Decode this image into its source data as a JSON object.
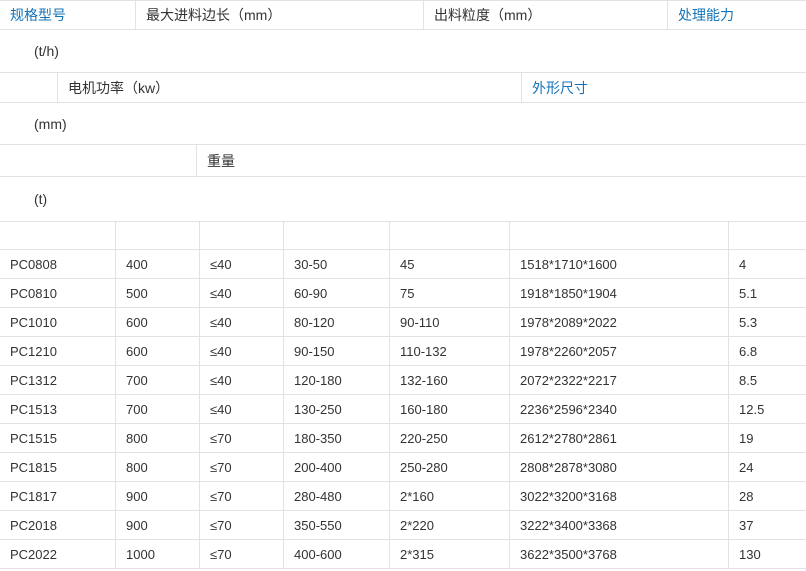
{
  "colors": {
    "link_blue": "#1473b9",
    "text": "#333333",
    "border": "#e2e2e2",
    "background": "#ffffff"
  },
  "header_rows": {
    "row1": {
      "spec_model": "规格型号",
      "max_feed_size": "最大进料边长（mm）",
      "output_granularity": "出料粒度（mm）",
      "capacity": "处理能力"
    },
    "capacity_unit": "(t/h)",
    "row2": {
      "motor_power": "电机功率（kw）",
      "dimensions": "外形尺寸"
    },
    "dimensions_unit": "(mm)",
    "row3": {
      "weight": "重量"
    },
    "weight_unit": "(t)"
  },
  "table": {
    "column_keys": [
      "model",
      "max_feed_edge_mm",
      "output_size_mm",
      "capacity_tph",
      "motor_power_kw",
      "dimensions_mm",
      "weight_t"
    ],
    "rows": [
      [
        "PC0808",
        "400",
        "≤40",
        "30-50",
        "45",
        "1518*1710*1600",
        "4"
      ],
      [
        "PC0810",
        "500",
        "≤40",
        "60-90",
        "75",
        "1918*1850*1904",
        "5.1"
      ],
      [
        "PC1010",
        "600",
        "≤40",
        "80-120",
        "90-110",
        "1978*2089*2022",
        "5.3"
      ],
      [
        "PC1210",
        "600",
        "≤40",
        "90-150",
        "110-132",
        "1978*2260*2057",
        "6.8"
      ],
      [
        "PC1312",
        "700",
        "≤40",
        "120-180",
        "132-160",
        "2072*2322*2217",
        "8.5"
      ],
      [
        "PC1513",
        "700",
        "≤40",
        "130-250",
        "160-180",
        "2236*2596*2340",
        "12.5"
      ],
      [
        "PC1515",
        "800",
        "≤70",
        "180-350",
        "220-250",
        "2612*2780*2861",
        "19"
      ],
      [
        "PC1815",
        "800",
        "≤70",
        "200-400",
        "250-280",
        "2808*2878*3080",
        "24"
      ],
      [
        "PC1817",
        "900",
        "≤70",
        "280-480",
        "2*160",
        "3022*3200*3168",
        "28"
      ],
      [
        "PC2018",
        "900",
        "≤70",
        "350-550",
        "2*220",
        "3222*3400*3368",
        "37"
      ],
      [
        "PC2022",
        "1000",
        "≤70",
        "400-600",
        "2*315",
        "3622*3500*3768",
        "130"
      ]
    ]
  }
}
